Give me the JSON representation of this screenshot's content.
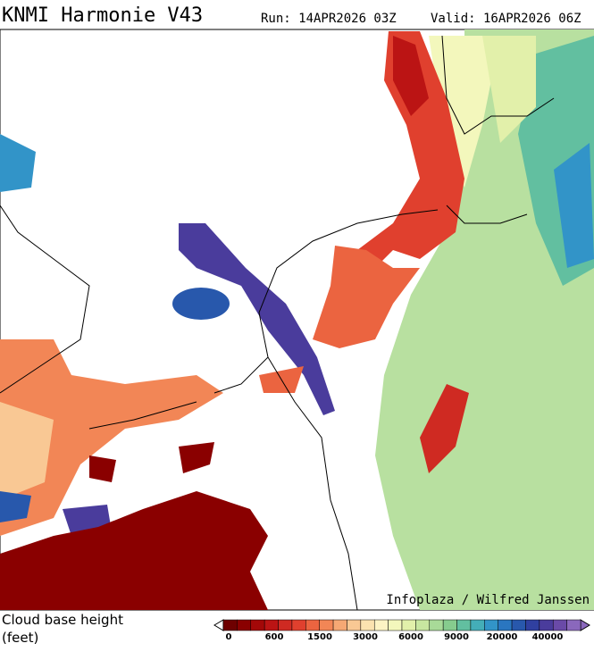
{
  "header": {
    "title": "KNMI Harmonie V43",
    "run": "Run: 14APR2026 03Z",
    "valid": "Valid: 16APR2026 06Z"
  },
  "credit": "Infoplaza / Wilfred Janssen",
  "legend": {
    "title": "Cloud base height",
    "unit": "(feet)",
    "labels": [
      "0",
      "600",
      "1500",
      "3000",
      "6000",
      "9000",
      "20000",
      "40000"
    ],
    "colors": [
      "#6e0000",
      "#8a0000",
      "#a30808",
      "#bb1414",
      "#cf2a22",
      "#e0402e",
      "#eb6440",
      "#f28656",
      "#f6a874",
      "#f9c894",
      "#fbe2b0",
      "#fdf3c4",
      "#f3f7bc",
      "#e2f0aa",
      "#c8e6a0",
      "#a8da98",
      "#86cc8e",
      "#62bfa0",
      "#44aeb8",
      "#3294c8",
      "#2a76c0",
      "#2858ac",
      "#3040a0",
      "#4a3c9c",
      "#6a4aa8",
      "#8a68bc"
    ]
  }
}
